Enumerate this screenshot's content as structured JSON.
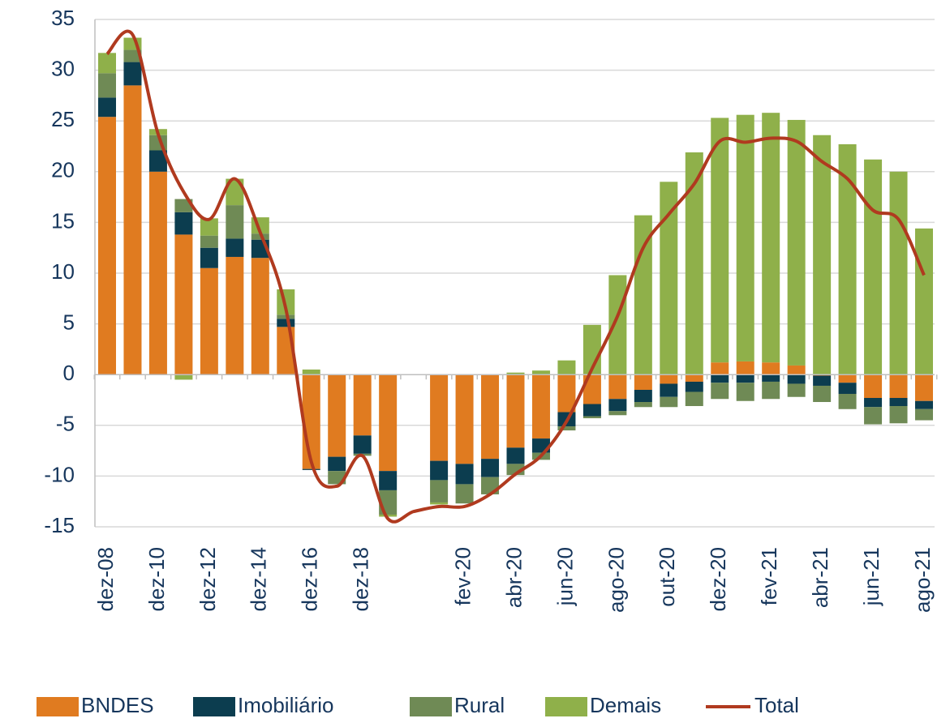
{
  "chart_data": {
    "type": "bar",
    "categories": [
      "dez-08",
      null,
      "dez-10",
      null,
      "dez-12",
      null,
      "dez-14",
      null,
      "dez-16",
      null,
      "dez-18",
      null,
      null,
      null,
      "fev-20",
      null,
      "abr-20",
      null,
      "jun-20",
      null,
      "ago-20",
      null,
      "out-20",
      null,
      "dez-20",
      null,
      "fev-21",
      null,
      "abr-21",
      null,
      "jun-21",
      null,
      "ago-21"
    ],
    "series": [
      {
        "name": "BNDES",
        "color": "#e07b20",
        "values": [
          25.4,
          28.5,
          20.0,
          13.8,
          10.5,
          11.6,
          11.5,
          4.7,
          -9.3,
          -8.1,
          -6.0,
          -9.5,
          null,
          -8.5,
          -8.8,
          -8.3,
          -7.2,
          -6.3,
          -3.7,
          -2.9,
          -2.4,
          -1.5,
          -0.9,
          -0.7,
          1.2,
          1.3,
          1.2,
          0.9,
          -0.1,
          -0.8,
          -2.3,
          -2.3,
          -2.6
        ]
      },
      {
        "name": "Imobiliário",
        "color": "#0c3d4f",
        "values": [
          1.9,
          2.3,
          2.1,
          2.2,
          2.0,
          1.8,
          1.8,
          0.8,
          -0.1,
          -1.4,
          -1.8,
          -1.9,
          null,
          -1.9,
          -2.0,
          -1.8,
          -1.6,
          -1.4,
          -1.4,
          -1.2,
          -1.2,
          -1.2,
          -1.3,
          -1.0,
          -0.8,
          -0.8,
          -0.7,
          -0.9,
          -1.0,
          -1.1,
          -0.9,
          -0.8,
          -0.8
        ]
      },
      {
        "name": "Rural",
        "color": "#6f8a55",
        "values": [
          2.4,
          1.2,
          1.5,
          1.3,
          1.2,
          3.3,
          0.6,
          0.4,
          0,
          -1.3,
          -0.2,
          -2.4,
          null,
          -2.2,
          -1.9,
          -1.7,
          -1.1,
          -0.7,
          -0.4,
          -0.2,
          -0.4,
          -0.5,
          -1.0,
          -1.4,
          -1.6,
          -1.8,
          -1.7,
          -1.3,
          -1.6,
          -1.5,
          -1.7,
          -1.7,
          -1.1
        ]
      },
      {
        "name": "Demais",
        "color": "#8fb04a",
        "values": [
          2.0,
          1.2,
          0.6,
          -0.5,
          1.7,
          2.6,
          1.6,
          2.5,
          0.5,
          0,
          0,
          -0.2,
          null,
          -0.2,
          0,
          0,
          0.2,
          0.4,
          1.4,
          4.9,
          9.8,
          15.7,
          19.0,
          21.9,
          24.1,
          24.3,
          24.6,
          24.2,
          23.6,
          22.7,
          21.2,
          20.0,
          14.4
        ]
      },
      {
        "name": "Total",
        "type": "line",
        "color": "#b03a1f",
        "values": [
          31.6,
          33.5,
          23.7,
          18.0,
          15.3,
          19.3,
          14.0,
          6.5,
          -8.6,
          -11.0,
          -8.0,
          -14.2,
          -13.5,
          -13.0,
          -13.0,
          -11.8,
          -9.8,
          -8.0,
          -4.6,
          0.6,
          5.8,
          12.5,
          15.8,
          18.8,
          23.0,
          22.9,
          23.3,
          23.0,
          21.0,
          19.3,
          16.2,
          15.3,
          9.8
        ]
      }
    ],
    "ylim": [
      -15,
      35
    ],
    "yticks": [
      -15,
      -10,
      -5,
      0,
      5,
      10,
      15,
      20,
      25,
      30,
      35
    ],
    "grid": true,
    "legend": "bottom"
  }
}
